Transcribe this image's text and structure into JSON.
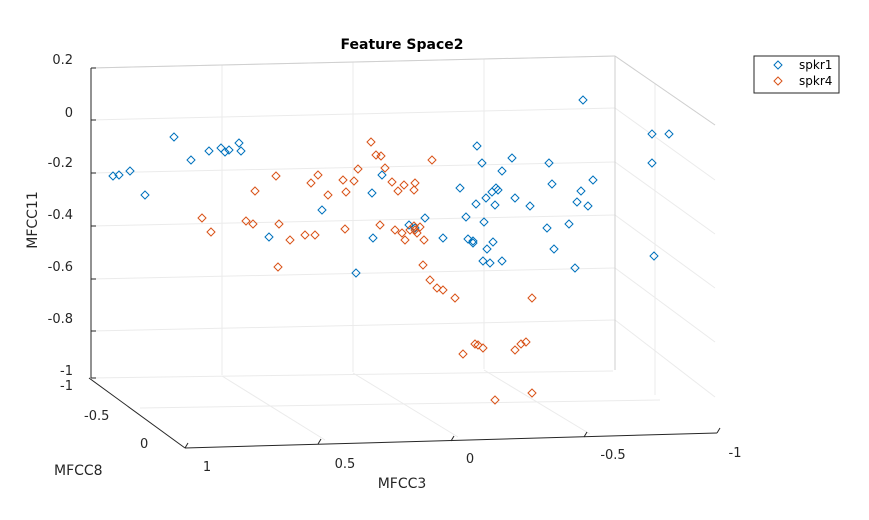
{
  "chart_data": {
    "type": "scatter",
    "title": "Feature Space2",
    "xlabel": "MFCC3",
    "ylabel": "MFCC8",
    "zlabel": "MFCC11",
    "xticks": [
      "1",
      "0.5",
      "0",
      "-0.5",
      "-1"
    ],
    "yticks": [
      "-1",
      "-0.5",
      "0"
    ],
    "zticks": [
      "0.2",
      "0",
      "-0.2",
      "-0.4",
      "-0.6",
      "-0.8",
      "-1"
    ],
    "legend_position": "top-right",
    "grid": true,
    "series": [
      {
        "name": "spkr1",
        "color": "#0072BD",
        "marker": "diamond",
        "points": [
          [
            174,
            137
          ],
          [
            191,
            160
          ],
          [
            209,
            151
          ],
          [
            221,
            148
          ],
          [
            225,
            152
          ],
          [
            229,
            150
          ],
          [
            239,
            143
          ],
          [
            241,
            151
          ],
          [
            113,
            176
          ],
          [
            119,
            175
          ],
          [
            130,
            171
          ],
          [
            145,
            195
          ],
          [
            269,
            237
          ],
          [
            322,
            210
          ],
          [
            356,
            273
          ],
          [
            372,
            193
          ],
          [
            382,
            175
          ],
          [
            373,
            238
          ],
          [
            415,
            228
          ],
          [
            409,
            225
          ],
          [
            425,
            218
          ],
          [
            443,
            238
          ],
          [
            468,
            239
          ],
          [
            473,
            243
          ],
          [
            477,
            146
          ],
          [
            482,
            163
          ],
          [
            460,
            188
          ],
          [
            466,
            217
          ],
          [
            473,
            241
          ],
          [
            476,
            204
          ],
          [
            484,
            222
          ],
          [
            487,
            249
          ],
          [
            492,
            192
          ],
          [
            496,
            188
          ],
          [
            493,
            242
          ],
          [
            495,
            205
          ],
          [
            498,
            190
          ],
          [
            502,
            171
          ],
          [
            486,
            198
          ],
          [
            483,
            261
          ],
          [
            490,
            263
          ],
          [
            502,
            261
          ],
          [
            512,
            158
          ],
          [
            515,
            198
          ],
          [
            549,
            163
          ],
          [
            552,
            184
          ],
          [
            530,
            206
          ],
          [
            547,
            228
          ],
          [
            554,
            249
          ],
          [
            569,
            224
          ],
          [
            575,
            268
          ],
          [
            577,
            202
          ],
          [
            581,
            191
          ],
          [
            588,
            206
          ],
          [
            593,
            180
          ],
          [
            583,
            100
          ],
          [
            652,
            134
          ],
          [
            669,
            134
          ],
          [
            652,
            163
          ],
          [
            654,
            256
          ]
        ]
      },
      {
        "name": "spkr4",
        "color": "#D95319",
        "marker": "diamond",
        "points": [
          [
            202,
            218
          ],
          [
            211,
            232
          ],
          [
            246,
            221
          ],
          [
            253,
            224
          ],
          [
            276,
            176
          ],
          [
            255,
            191
          ],
          [
            279,
            224
          ],
          [
            290,
            240
          ],
          [
            305,
            235
          ],
          [
            315,
            235
          ],
          [
            311,
            183
          ],
          [
            318,
            175
          ],
          [
            328,
            195
          ],
          [
            343,
            180
          ],
          [
            354,
            181
          ],
          [
            345,
            229
          ],
          [
            346,
            192
          ],
          [
            358,
            169
          ],
          [
            371,
            142
          ],
          [
            376,
            155
          ],
          [
            381,
            156
          ],
          [
            385,
            168
          ],
          [
            392,
            182
          ],
          [
            398,
            191
          ],
          [
            402,
            233
          ],
          [
            405,
            240
          ],
          [
            414,
            226
          ],
          [
            417,
            233
          ],
          [
            420,
            227
          ],
          [
            415,
            230
          ],
          [
            424,
            240
          ],
          [
            380,
            225
          ],
          [
            395,
            230
          ],
          [
            410,
            230
          ],
          [
            404,
            185
          ],
          [
            415,
            183
          ],
          [
            432,
            160
          ],
          [
            414,
            190
          ],
          [
            423,
            265
          ],
          [
            430,
            280
          ],
          [
            437,
            288
          ],
          [
            443,
            290
          ],
          [
            455,
            298
          ],
          [
            475,
            344
          ],
          [
            463,
            354
          ],
          [
            478,
            345
          ],
          [
            483,
            348
          ],
          [
            515,
            350
          ],
          [
            521,
            344
          ],
          [
            526,
            342
          ],
          [
            532,
            298
          ],
          [
            495,
            400
          ],
          [
            532,
            393
          ],
          [
            278,
            267
          ]
        ]
      }
    ]
  }
}
